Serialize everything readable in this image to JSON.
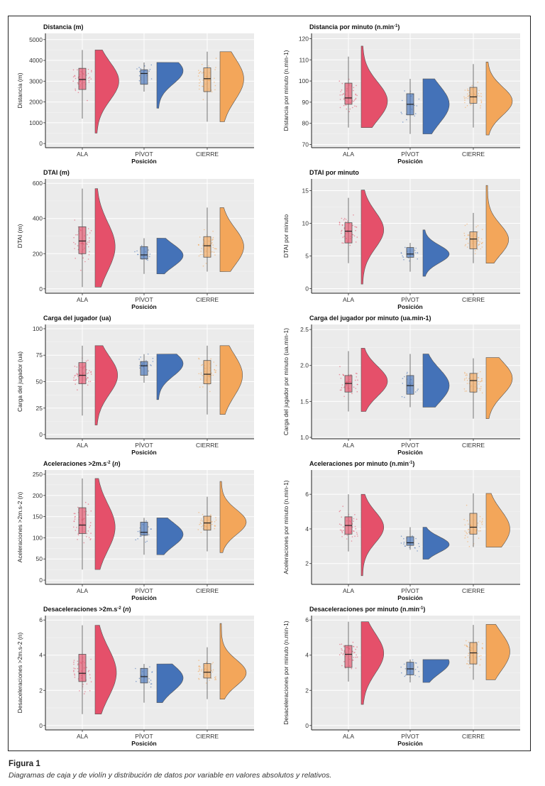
{
  "figure": {
    "caption_title": "Figura 1",
    "caption_text": "Diagramas de caja y de violín y distribución de datos por variable en valores absolutos y relativos."
  },
  "colors": {
    "ALA": "#E5506A",
    "PÍVOT": "#4472B8",
    "CIERRE": "#F3A65A",
    "panel_bg": "#EBEBEB",
    "grid": "#FFFFFF"
  },
  "chart_data": [
    {
      "type": "boxplot-violin",
      "title": "Distancia (m)",
      "title_sup": "",
      "ylabel": "Distancia (m)",
      "xlabel": "Posición",
      "categories": [
        "ALA",
        "PÍVOT",
        "CIERRE"
      ],
      "ylim": [
        -200,
        5300
      ],
      "yticks": [
        0,
        1000,
        2000,
        3000,
        4000,
        5000
      ],
      "series": [
        {
          "name": "ALA",
          "min": 1200,
          "q1": 2600,
          "median": 3080,
          "q3": 3620,
          "max": 4500,
          "violin_min": 500,
          "violin_max": 4500,
          "mode": 3000,
          "width": 0.9
        },
        {
          "name": "PÍVOT",
          "min": 2500,
          "q1": 2850,
          "median": 3370,
          "q3": 3550,
          "max": 3900,
          "violin_min": 1700,
          "violin_max": 3900,
          "mode": 3500,
          "width": 1.0
        },
        {
          "name": "CIERRE",
          "min": 1050,
          "q1": 2500,
          "median": 3120,
          "q3": 3640,
          "max": 4420,
          "violin_min": 1050,
          "violin_max": 4420,
          "mode": 3100,
          "width": 0.9
        }
      ]
    },
    {
      "type": "boxplot-violin",
      "title": "Distancia por minuto (n.min",
      "title_sup": "-1",
      "title_end": ")",
      "ylabel": "Distancia por minuto (n.min-1)",
      "xlabel": "Posición",
      "categories": [
        "ALA",
        "PÍVOT",
        "CIERRE"
      ],
      "ylim": [
        68.5,
        122.5
      ],
      "yticks": [
        70,
        80,
        90,
        100,
        110,
        120
      ],
      "series": [
        {
          "name": "ALA",
          "min": 78,
          "q1": 89,
          "median": 92,
          "q3": 99,
          "max": 111.5,
          "violin_min": 78,
          "violin_max": 116.5,
          "mode": 90.5,
          "width": 1.0
        },
        {
          "name": "PÍVOT",
          "min": 75,
          "q1": 84,
          "median": 89,
          "q3": 94,
          "max": 101,
          "violin_min": 75,
          "violin_max": 101,
          "mode": 89,
          "width": 1.0
        },
        {
          "name": "CIERRE",
          "min": 78,
          "q1": 89.5,
          "median": 92.5,
          "q3": 97,
          "max": 108,
          "violin_min": 74.5,
          "violin_max": 109,
          "mode": 90.5,
          "width": 1.0
        }
      ]
    },
    {
      "type": "boxplot-violin",
      "title": "DTAI (m)",
      "title_sup": "",
      "ylabel": "DTAI (m)",
      "xlabel": "Posición",
      "categories": [
        "ALA",
        "PÍVOT",
        "CIERRE"
      ],
      "ylim": [
        -25,
        625
      ],
      "yticks": [
        0,
        200,
        400,
        600
      ],
      "series": [
        {
          "name": "ALA",
          "min": 10,
          "q1": 200,
          "median": 272,
          "q3": 353,
          "max": 570,
          "violin_min": 10,
          "violin_max": 570,
          "mode": 240,
          "width": 0.75
        },
        {
          "name": "PÍVOT",
          "min": 85,
          "q1": 170,
          "median": 193,
          "q3": 240,
          "max": 288,
          "violin_min": 85,
          "violin_max": 288,
          "mode": 190,
          "width": 1.0
        },
        {
          "name": "CIERRE",
          "min": 98,
          "q1": 180,
          "median": 245,
          "q3": 297,
          "max": 462,
          "violin_min": 98,
          "violin_max": 462,
          "mode": 240,
          "width": 0.9
        }
      ]
    },
    {
      "type": "boxplot-violin",
      "title": "DTAI por minuto",
      "title_sup": "",
      "ylabel": "DTAI por minuto",
      "xlabel": "Posición",
      "categories": [
        "ALA",
        "PÍVOT",
        "CIERRE"
      ],
      "ylim": [
        -0.7,
        16.8
      ],
      "yticks": [
        0,
        5,
        10,
        15
      ],
      "series": [
        {
          "name": "ALA",
          "min": 3.9,
          "q1": 7.0,
          "median": 8.8,
          "q3": 10.1,
          "max": 13.9,
          "violin_min": 0.7,
          "violin_max": 15.1,
          "mode": 9.0,
          "width": 0.85
        },
        {
          "name": "PÍVOT",
          "min": 2.6,
          "q1": 4.8,
          "median": 5.3,
          "q3": 6.3,
          "max": 7.0,
          "violin_min": 1.9,
          "violin_max": 9.0,
          "mode": 5.3,
          "width": 1.0
        },
        {
          "name": "CIERRE",
          "min": 3.9,
          "q1": 6.1,
          "median": 7.6,
          "q3": 8.7,
          "max": 11.6,
          "violin_min": 3.9,
          "violin_max": 15.8,
          "mode": 7.5,
          "width": 0.85
        }
      ]
    },
    {
      "type": "boxplot-violin",
      "title": "Carga del jugador (ua)",
      "title_sup": "",
      "ylabel": "Carga del jugador (ua)",
      "xlabel": "Posición",
      "categories": [
        "ALA",
        "PÍVOT",
        "CIERRE"
      ],
      "ylim": [
        -4,
        104
      ],
      "yticks": [
        0,
        25,
        50,
        75,
        100
      ],
      "series": [
        {
          "name": "ALA",
          "min": 18,
          "q1": 48,
          "median": 56,
          "q3": 68,
          "max": 84,
          "violin_min": 9,
          "violin_max": 84,
          "mode": 56,
          "width": 0.85
        },
        {
          "name": "PÍVOT",
          "min": 49,
          "q1": 56,
          "median": 65,
          "q3": 69,
          "max": 76,
          "violin_min": 33,
          "violin_max": 76,
          "mode": 67,
          "width": 1.0
        },
        {
          "name": "CIERRE",
          "min": 19,
          "q1": 48,
          "median": 57,
          "q3": 70,
          "max": 84,
          "violin_min": 19,
          "violin_max": 84,
          "mode": 56,
          "width": 0.85
        }
      ]
    },
    {
      "type": "boxplot-violin",
      "title": "Carga del jugador por minuto (ua.min-1)",
      "title_sup": "",
      "ylabel": "Carga del jugador por minuto (ua.min-1)",
      "xlabel": "Posición",
      "categories": [
        "ALA",
        "PÍVOT",
        "CIERRE"
      ],
      "ylim": [
        0.98,
        2.57
      ],
      "yticks": [
        1.0,
        1.5,
        2.0,
        2.5
      ],
      "series": [
        {
          "name": "ALA",
          "min": 1.36,
          "q1": 1.63,
          "median": 1.75,
          "q3": 1.86,
          "max": 2.2,
          "violin_min": 1.36,
          "violin_max": 2.24,
          "mode": 1.78,
          "width": 1.0
        },
        {
          "name": "PÍVOT",
          "min": 1.42,
          "q1": 1.6,
          "median": 1.72,
          "q3": 1.86,
          "max": 2.16,
          "violin_min": 1.42,
          "violin_max": 2.16,
          "mode": 1.72,
          "width": 1.0
        },
        {
          "name": "CIERRE",
          "min": 1.26,
          "q1": 1.63,
          "median": 1.79,
          "q3": 1.89,
          "max": 2.1,
          "violin_min": 1.26,
          "violin_max": 2.11,
          "mode": 1.82,
          "width": 1.0
        }
      ]
    },
    {
      "type": "boxplot-violin",
      "title": "Aceleraciones >2m.s",
      "title_sup": "-2",
      "title_end": " (n)",
      "ylabel": "Aceleraciones >2m.s-2 (n)",
      "xlabel": "Posición",
      "categories": [
        "ALA",
        "PÍVOT",
        "CIERRE"
      ],
      "ylim": [
        -10,
        260
      ],
      "yticks": [
        0,
        50,
        100,
        150,
        200,
        250
      ],
      "series": [
        {
          "name": "ALA",
          "min": 25,
          "q1": 110,
          "median": 130,
          "q3": 171,
          "max": 240,
          "violin_min": 25,
          "violin_max": 240,
          "mode": 125,
          "width": 0.75
        },
        {
          "name": "PÍVOT",
          "min": 60,
          "q1": 106,
          "median": 113,
          "q3": 137,
          "max": 147,
          "violin_min": 60,
          "violin_max": 147,
          "mode": 108,
          "width": 1.0
        },
        {
          "name": "CIERRE",
          "min": 68,
          "q1": 118,
          "median": 135,
          "q3": 151,
          "max": 197,
          "violin_min": 65,
          "violin_max": 233,
          "mode": 137,
          "width": 1.0
        }
      ]
    },
    {
      "type": "boxplot-violin",
      "title": "Aceleraciones por minuto (n.min",
      "title_sup": "-1",
      "title_end": ")",
      "ylabel": "Aceleraciones por minuto (n.min-1)",
      "xlabel": "Posición",
      "categories": [
        "ALA",
        "PÍVOT",
        "CIERRE"
      ],
      "ylim": [
        0.8,
        7.4
      ],
      "yticks": [
        2,
        4,
        6
      ],
      "series": [
        {
          "name": "ALA",
          "min": 2.7,
          "q1": 3.7,
          "median": 4.2,
          "q3": 4.7,
          "max": 6.0,
          "violin_min": 1.3,
          "violin_max": 6.0,
          "mode": 4.1,
          "width": 0.85
        },
        {
          "name": "PÍVOT",
          "min": 2.8,
          "q1": 3.05,
          "median": 3.2,
          "q3": 3.55,
          "max": 4.1,
          "violin_min": 2.25,
          "violin_max": 4.1,
          "mode": 3.1,
          "width": 1.0
        },
        {
          "name": "CIERRE",
          "min": 2.95,
          "q1": 3.7,
          "median": 4.1,
          "q3": 4.9,
          "max": 6.05,
          "violin_min": 2.95,
          "violin_max": 6.05,
          "mode": 4.0,
          "width": 0.9
        }
      ]
    },
    {
      "type": "boxplot-violin",
      "title": "Desaceleraciones >2m.s",
      "title_sup": "-2",
      "title_end": " (n)",
      "ylabel": "Desaceleraciones >2m.s-2 (n)",
      "xlabel": "Posición",
      "categories": [
        "ALA",
        "PÍVOT",
        "CIERRE"
      ],
      "ylim": [
        -0.25,
        6.25
      ],
      "yticks": [
        0,
        2,
        4,
        6
      ],
      "series": [
        {
          "name": "ALA",
          "min": 0.65,
          "q1": 2.5,
          "median": 2.97,
          "q3": 4.05,
          "max": 5.7,
          "violin_min": 0.65,
          "violin_max": 5.7,
          "mode": 3.0,
          "width": 0.8
        },
        {
          "name": "PÍVOT",
          "min": 1.3,
          "q1": 2.42,
          "median": 2.78,
          "q3": 3.25,
          "max": 3.5,
          "violin_min": 1.3,
          "violin_max": 3.5,
          "mode": 2.7,
          "width": 1.0
        },
        {
          "name": "CIERRE",
          "min": 1.5,
          "q1": 2.7,
          "median": 3.03,
          "q3": 3.52,
          "max": 4.45,
          "violin_min": 1.5,
          "violin_max": 5.8,
          "mode": 3.0,
          "width": 1.0
        }
      ]
    },
    {
      "type": "boxplot-violin",
      "title": "Desaceleraciones por minuto (n.min",
      "title_sup": "-1",
      "title_end": ")",
      "ylabel": "Desaceleraciones por minuto (n.min-1)",
      "xlabel": "Posición",
      "categories": [
        "ALA",
        "PÍVOT",
        "CIERRE"
      ],
      "ylim": [
        -0.25,
        6.25
      ],
      "yticks": [
        0,
        2,
        4,
        6
      ],
      "series": [
        {
          "name": "ALA",
          "min": 2.5,
          "q1": 3.3,
          "median": 4.05,
          "q3": 4.55,
          "max": 5.9,
          "violin_min": 1.2,
          "violin_max": 5.9,
          "mode": 4.1,
          "width": 0.85
        },
        {
          "name": "PÍVOT",
          "min": 2.45,
          "q1": 2.88,
          "median": 3.22,
          "q3": 3.6,
          "max": 3.75,
          "violin_min": 2.45,
          "violin_max": 3.75,
          "mode": 3.6,
          "width": 1.0
        },
        {
          "name": "CIERRE",
          "min": 2.6,
          "q1": 3.5,
          "median": 4.13,
          "q3": 4.72,
          "max": 5.72,
          "violin_min": 2.6,
          "violin_max": 5.75,
          "mode": 4.2,
          "width": 0.9
        }
      ]
    }
  ]
}
